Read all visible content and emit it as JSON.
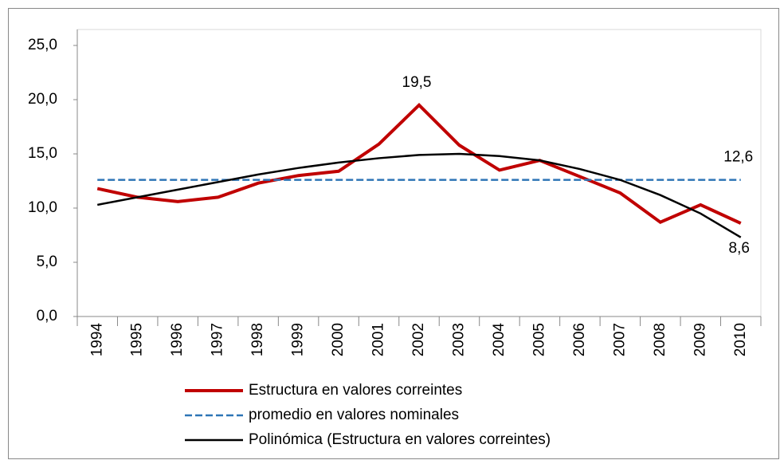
{
  "chart_data": {
    "type": "line",
    "categories": [
      "1994",
      "1995",
      "1996",
      "1997",
      "1998",
      "1999",
      "2000",
      "2001",
      "2002",
      "2003",
      "2004",
      "2005",
      "2006",
      "2007",
      "2008",
      "2009",
      "2010"
    ],
    "series": [
      {
        "name": "Estructura en valores correintes",
        "color": "#c00000",
        "style": "solid",
        "values": [
          11.8,
          11.0,
          10.6,
          11.0,
          12.3,
          13.0,
          13.4,
          15.9,
          19.5,
          15.8,
          13.5,
          14.4,
          12.9,
          11.4,
          8.7,
          10.3,
          8.6
        ],
        "value_labels": [
          null,
          null,
          null,
          null,
          null,
          null,
          null,
          null,
          "19,5",
          null,
          null,
          null,
          null,
          null,
          null,
          null,
          "8,6"
        ]
      },
      {
        "name": "promedio en valores nominales",
        "color": "#2e75b6",
        "style": "dashed",
        "values": [
          12.6,
          12.6,
          12.6,
          12.6,
          12.6,
          12.6,
          12.6,
          12.6,
          12.6,
          12.6,
          12.6,
          12.6,
          12.6,
          12.6,
          12.6,
          12.6,
          12.6
        ],
        "value_labels": [
          null,
          null,
          null,
          null,
          null,
          null,
          null,
          null,
          null,
          null,
          null,
          null,
          null,
          null,
          null,
          null,
          "12,6"
        ]
      },
      {
        "name": "Polinómica (Estructura en valores correintes)",
        "color": "#000000",
        "style": "solid",
        "values": [
          10.3,
          11.0,
          11.7,
          12.4,
          13.1,
          13.7,
          14.2,
          14.6,
          14.9,
          15.0,
          14.8,
          14.4,
          13.6,
          12.6,
          11.2,
          9.5,
          7.3
        ]
      }
    ],
    "ylim": [
      0,
      25
    ],
    "yticks": [
      {
        "value": 0,
        "label": "0,0"
      },
      {
        "value": 5,
        "label": "5,0"
      },
      {
        "value": 10,
        "label": "10,0"
      },
      {
        "value": 15,
        "label": "15,0"
      },
      {
        "value": 20,
        "label": "20,0"
      },
      {
        "value": 25,
        "label": "25,0"
      }
    ],
    "grid": false,
    "legend": "bottom"
  }
}
